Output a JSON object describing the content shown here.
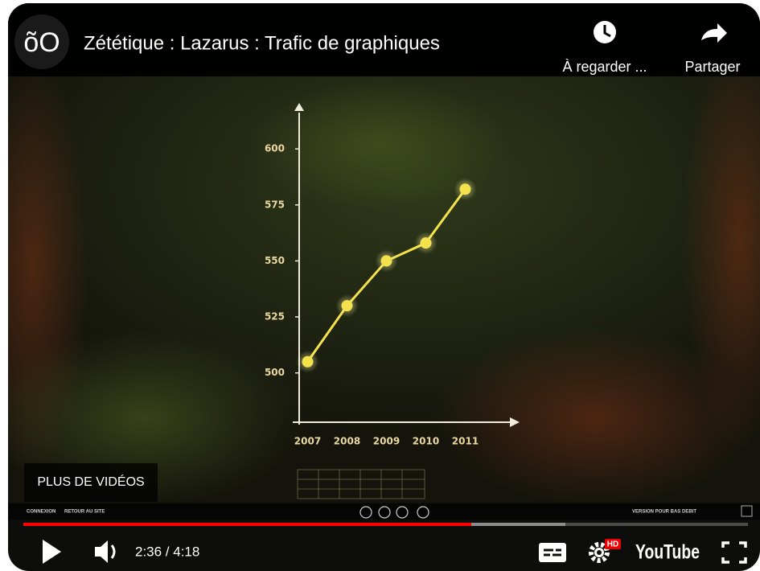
{
  "header": {
    "channel_logo": "õO",
    "title": "Zététique : Lazarus : Trafic de graphiques",
    "watch_later": "À regarder ...",
    "share": "Partager"
  },
  "chart_data": {
    "type": "line",
    "categories": [
      "2007",
      "2008",
      "2009",
      "2010",
      "2011"
    ],
    "values": [
      505,
      530,
      550,
      558,
      582
    ],
    "color": "#f3e24c",
    "ylim": [
      478,
      618
    ],
    "yticks": [
      500,
      525,
      550,
      575,
      600
    ]
  },
  "overlay": {
    "more_videos": "PLUS DE VIDÉOS",
    "login": "CONNEXION",
    "back_to_site": "RETOUR AU SITE",
    "low_bandwidth": "VERSION POUR BAS DEBIT"
  },
  "controls": {
    "time": "2:36 / 4:18",
    "hd_badge": "HD",
    "logo": "YouTube"
  }
}
